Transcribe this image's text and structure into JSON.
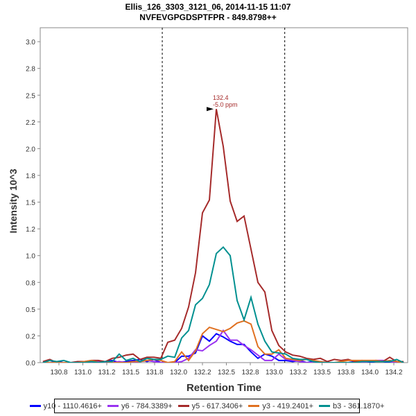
{
  "chart_data": {
    "type": "line",
    "title": "Ellis_126_3303_3121_06, 2014-11-15 11:07",
    "subtitle": "NVFEVGPGDSPTFPR - 849.8798++",
    "xlabel": "Retention Time",
    "ylabel": "Intensity 10^3",
    "xlim": [
      130.55,
      134.39
    ],
    "ylim": [
      0,
      3.05
    ],
    "x_ticks": [
      130.75,
      131.0,
      131.25,
      131.5,
      131.75,
      132.0,
      132.25,
      132.5,
      132.75,
      133.0,
      133.25,
      133.5,
      133.75,
      134.0,
      134.25
    ],
    "x_tick_labels": [
      "130.8",
      "131.0",
      "131.2",
      "131.5",
      "131.8",
      "132.0",
      "132.2",
      "132.5",
      "132.8",
      "133.0",
      "133.2",
      "133.5",
      "133.8",
      "134.0",
      "134.2"
    ],
    "y_ticks": [
      0,
      0.25,
      0.5,
      0.75,
      1.0,
      1.25,
      1.5,
      1.75,
      2.0,
      2.25,
      2.5,
      2.75,
      3.0
    ],
    "y_tick_labels": [
      "0.0",
      "0.2",
      "0.5",
      "0.8",
      "1.0",
      "1.2",
      "1.5",
      "1.8",
      "2.0",
      "2.2",
      "2.5",
      "2.8",
      "3.0"
    ],
    "grid": false,
    "legend_position": "bottom",
    "x_start": 130.5825,
    "x_step": 0.0725,
    "integration_bounds": [
      131.83,
      133.11
    ],
    "annotation": {
      "x": 132.395,
      "y": 2.37,
      "line1": "132.4",
      "line2": "-5.0 ppm",
      "color": "#a52a2a"
    },
    "series": [
      {
        "name": "y10 - 1110.4616+",
        "color": "#0000ff",
        "values": [
          0,
          0,
          0.01,
          0,
          0,
          0,
          0,
          0,
          0,
          0.01,
          0.02,
          0,
          0.01,
          0.02,
          0.03,
          0.01,
          0.03,
          0,
          0,
          0,
          0.06,
          0.06,
          0.09,
          0.25,
          0.2,
          0.27,
          0.24,
          0.2,
          0.17,
          0.17,
          0.1,
          0.04,
          0.08,
          0.06,
          0.02,
          0.02,
          0.01,
          0.02,
          0,
          0.01,
          0.01,
          0,
          0,
          0,
          0,
          0.01,
          0.02,
          0,
          0.01,
          0.01,
          0,
          0,
          0
        ]
      },
      {
        "name": "y6 - 784.3389+",
        "color": "#9932f0",
        "values": [
          0,
          0,
          0,
          0,
          0,
          0,
          0,
          0,
          0.01,
          0,
          0,
          0.01,
          0,
          0,
          0.01,
          0.02,
          0.01,
          0,
          0,
          0,
          0.01,
          0.04,
          0.12,
          0.11,
          0.16,
          0.2,
          0.3,
          0.21,
          0.21,
          0.16,
          0.12,
          0.07,
          0.02,
          0.02,
          0.08,
          0.03,
          0.02,
          0.01,
          0,
          0,
          0.01,
          0,
          0,
          0,
          0,
          0,
          0,
          0.01,
          0.02,
          0.02,
          0.01,
          0,
          0
        ]
      },
      {
        "name": "y5 - 617.3406+",
        "color": "#a52a2a",
        "values": [
          0.01,
          0.03,
          0,
          0,
          0,
          0.01,
          0.01,
          0.02,
          0.02,
          0.01,
          0.04,
          0.05,
          0.07,
          0.08,
          0.03,
          0.05,
          0.05,
          0.04,
          0.19,
          0.21,
          0.32,
          0.52,
          0.84,
          1.4,
          1.52,
          2.37,
          2.02,
          1.51,
          1.32,
          1.37,
          1.06,
          0.75,
          0.66,
          0.3,
          0.16,
          0.1,
          0.07,
          0.06,
          0.04,
          0.03,
          0.04,
          0.01,
          0.03,
          0.02,
          0.03,
          0.01,
          0.01,
          0.01,
          0.02,
          0.01,
          0.05,
          0.01,
          0.01
        ]
      },
      {
        "name": "y3 - 419.2401+",
        "color": "#e07020",
        "values": [
          0,
          0,
          0,
          0,
          0,
          0,
          0.01,
          0.02,
          0,
          0.01,
          0,
          0,
          0,
          0.01,
          0.01,
          0.02,
          0.03,
          0.02,
          0,
          0.01,
          0.1,
          0.02,
          0.11,
          0.27,
          0.33,
          0.31,
          0.29,
          0.32,
          0.37,
          0.39,
          0.36,
          0.15,
          0.08,
          0.08,
          0.12,
          0.04,
          0.03,
          0.02,
          0.03,
          0.02,
          0.01,
          0,
          0,
          0.01,
          0.02,
          0.02,
          0.02,
          0.02,
          0.02,
          0.01,
          0.02,
          0.01,
          0
        ]
      },
      {
        "name": "b3 - 361.1870+",
        "color": "#009090",
        "values": [
          0,
          0.02,
          0.01,
          0.02,
          0,
          0,
          0,
          0.01,
          0,
          0.01,
          0.01,
          0.08,
          0.02,
          0.04,
          0.01,
          0.04,
          0.03,
          0.03,
          0.06,
          0.05,
          0.23,
          0.3,
          0.54,
          0.6,
          0.73,
          1.02,
          1.08,
          1.0,
          0.58,
          0.4,
          0.61,
          0.36,
          0.2,
          0.1,
          0.09,
          0.08,
          0.04,
          0.03,
          0.03,
          0.01,
          0,
          0,
          0,
          0,
          0,
          0,
          0.01,
          0.01,
          0.01,
          0.01,
          0.01,
          0.03,
          0
        ]
      }
    ]
  }
}
